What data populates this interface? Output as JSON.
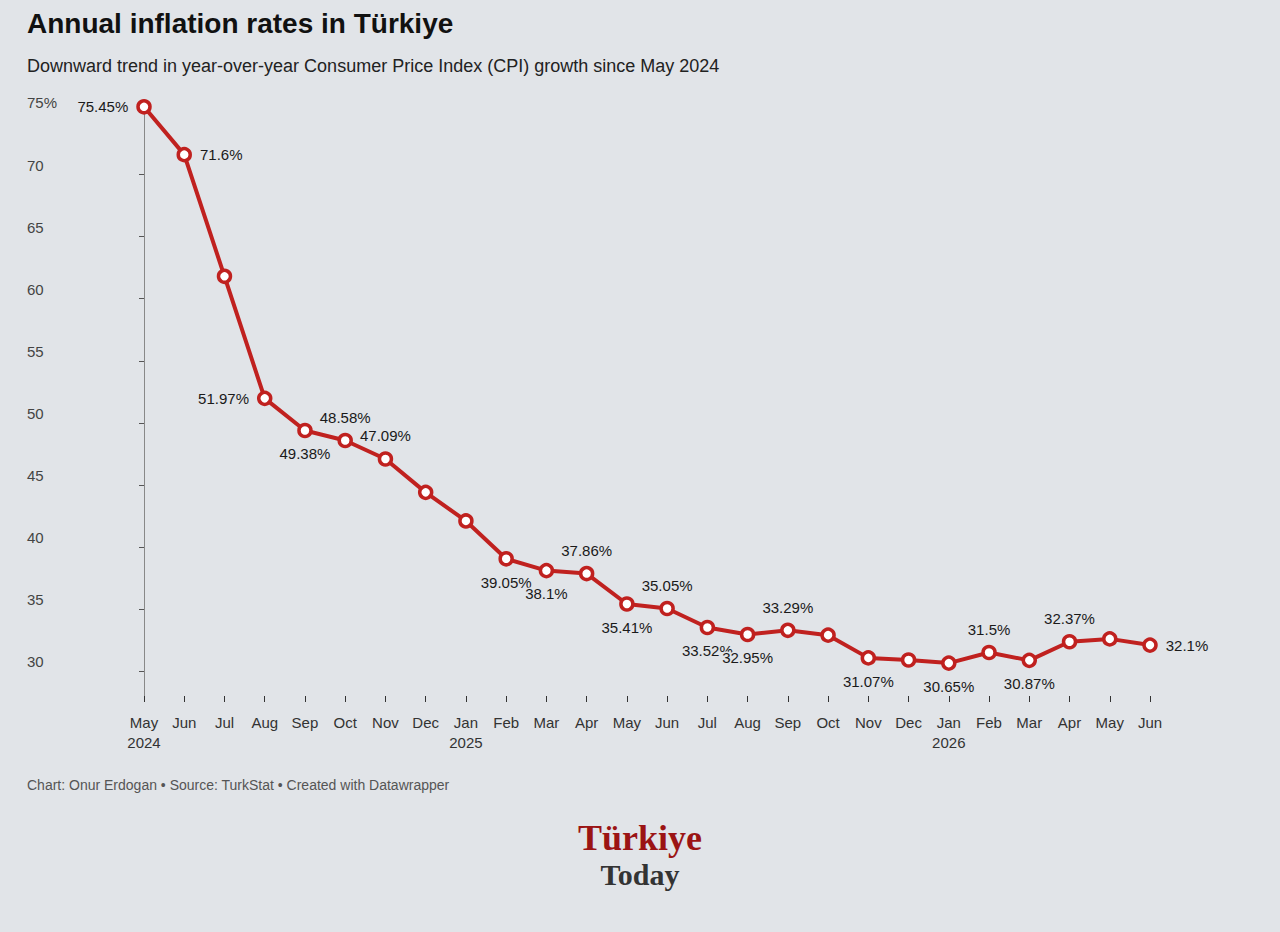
{
  "chart_data": {
    "type": "line",
    "title": "Annual inflation rates in Türkiye",
    "subtitle": "Downward trend in year-over-year Consumer Price Index (CPI) growth since May 2024",
    "categories": [
      "May 2024",
      "Jun",
      "Jul",
      "Aug",
      "Sep",
      "Oct",
      "Nov",
      "Dec",
      "Jan 2025",
      "Feb",
      "Mar",
      "Apr",
      "May",
      "Jun",
      "Jul",
      "Aug",
      "Sep",
      "Oct",
      "Nov",
      "Dec",
      "Jan 2026",
      "Feb",
      "Mar",
      "Apr",
      "May",
      "Jun"
    ],
    "values": [
      75.45,
      71.6,
      61.8,
      51.97,
      49.38,
      48.58,
      47.09,
      44.4,
      42.1,
      39.05,
      38.1,
      37.86,
      35.41,
      35.05,
      33.52,
      32.95,
      33.29,
      32.9,
      31.07,
      30.9,
      30.65,
      31.5,
      30.87,
      32.37,
      32.6,
      32.1
    ],
    "value_labels": [
      "75.45%",
      "71.6%",
      null,
      "51.97%",
      "49.38%",
      "48.58%",
      "47.09%",
      null,
      null,
      "39.05%",
      "38.1%",
      "37.86%",
      "35.41%",
      "35.05%",
      "33.52%",
      "32.95%",
      "33.29%",
      null,
      "31.07%",
      null,
      "30.65%",
      "31.5%",
      "30.87%",
      "32.37%",
      null,
      "32.1%"
    ],
    "color": "#c0211f",
    "ylim": [
      28,
      76
    ],
    "yticks": [
      30,
      35,
      40,
      45,
      50,
      55,
      60,
      65,
      70,
      {
        "value": 75,
        "label": "75%"
      }
    ],
    "grid": false,
    "data_labels": true,
    "marker": "circle",
    "credit": "Chart: Onur Erdogan • Source: TurkStat • Created with Datawrapper",
    "logo": [
      "Türkiye",
      "Today"
    ]
  }
}
